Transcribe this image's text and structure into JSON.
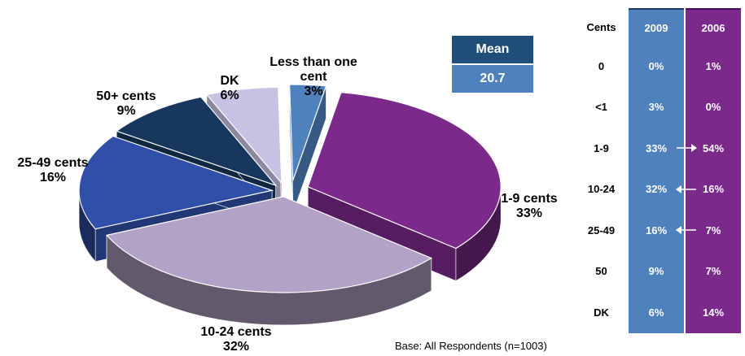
{
  "chart_data": [
    {
      "type": "pie",
      "categories": [
        "Less than one cent",
        "1-9 cents",
        "10-24 cents",
        "25-49 cents",
        "50+ cents",
        "DK"
      ],
      "labels": [
        {
          "name": "Less than one cent",
          "value_label": "3%"
        },
        {
          "name": "1-9 cents",
          "value_label": "33%"
        },
        {
          "name": "10-24 cents",
          "value_label": "32%"
        },
        {
          "name": "25-49 cents",
          "value_label": "16%"
        },
        {
          "name": "50+ cents",
          "value_label": "9%"
        },
        {
          "name": "DK",
          "value_label": "6%"
        }
      ],
      "values": [
        3,
        33,
        32,
        16,
        9,
        6
      ],
      "colors": [
        "#4f81bd",
        "#7b2a8c",
        "#b3a2c7",
        "#2f4fa8",
        "#17375e",
        "#c7c2e3"
      ],
      "style": "3d-exploded"
    },
    {
      "type": "table",
      "columns": [
        "Cents",
        "2009",
        "2006"
      ],
      "rows": [
        [
          "0",
          "0%",
          "1%"
        ],
        [
          "<1",
          "3%",
          "0%"
        ],
        [
          "1-9",
          "33%",
          "54%"
        ],
        [
          "10-24",
          "32%",
          "16%"
        ],
        [
          "25-49",
          "16%",
          "7%"
        ],
        [
          "50",
          "9%",
          "7%"
        ],
        [
          "DK",
          "6%",
          "14%"
        ]
      ],
      "arrows": [
        "",
        "",
        "right",
        "left",
        "left",
        "",
        ""
      ]
    }
  ],
  "mean": {
    "title": "Mean",
    "value": "20.7"
  },
  "base_note": "Base:  All Respondents (n=1003)",
  "colors": {
    "col_2009": "#4f81bd",
    "col_2006": "#7b2a8c",
    "mean_title": "#1f4e79"
  }
}
